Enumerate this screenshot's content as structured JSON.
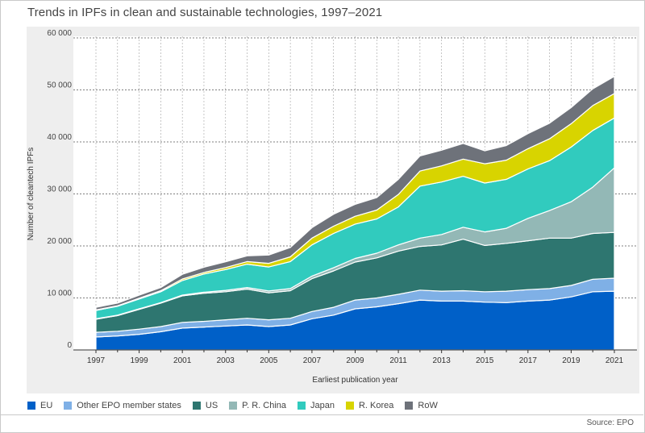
{
  "title": "Trends in IPFs in clean and sustainable technologies, 1997–2021",
  "source": "Source: EPO",
  "chart_data": {
    "type": "area",
    "stacked": true,
    "title": "Trends in IPFs in clean and sustainable technologies, 1997–2021",
    "xlabel": "Earliest publication year",
    "ylabel": "Number of cleantech IPFs",
    "ylim": [
      0,
      60000
    ],
    "yticks": [
      0,
      10000,
      20000,
      30000,
      40000,
      50000,
      60000
    ],
    "ytick_labels": [
      "0",
      "10 000",
      "20 000",
      "30 000",
      "40 000",
      "50 000",
      "60 000"
    ],
    "xtick_labels": [
      "1997",
      "1999",
      "2001",
      "2003",
      "2005",
      "2007",
      "2009",
      "2011",
      "2013",
      "2015",
      "2017",
      "2019",
      "2021"
    ],
    "x": [
      1997,
      1998,
      1999,
      2000,
      2001,
      2002,
      2003,
      2004,
      2005,
      2006,
      2007,
      2008,
      2009,
      2010,
      2011,
      2012,
      2013,
      2014,
      2015,
      2016,
      2017,
      2018,
      2019,
      2020,
      2021
    ],
    "grid": "horizontal",
    "legend_position": "bottom",
    "series": [
      {
        "name": "EU",
        "color": "#0060c8",
        "values": [
          2500,
          2700,
          3000,
          3500,
          4200,
          4400,
          4600,
          4800,
          4500,
          4800,
          6000,
          6700,
          7900,
          8300,
          8900,
          9600,
          9400,
          9400,
          9200,
          9100,
          9400,
          9600,
          10200,
          11200,
          11300
        ]
      },
      {
        "name": "Other EPO member states",
        "color": "#7fb0e6",
        "values": [
          900,
          900,
          1000,
          1000,
          1100,
          1100,
          1200,
          1300,
          1300,
          1300,
          1400,
          1500,
          1700,
          1700,
          1800,
          1900,
          1900,
          2000,
          2000,
          2200,
          2200,
          2200,
          2200,
          2400,
          2500
        ]
      },
      {
        "name": "US",
        "color": "#2e7670",
        "values": [
          2500,
          3000,
          3800,
          4500,
          5100,
          5400,
          5400,
          5600,
          5200,
          5300,
          6300,
          7000,
          7300,
          7700,
          8300,
          8400,
          8900,
          9900,
          8900,
          9200,
          9400,
          9700,
          9100,
          8800,
          8800
        ]
      },
      {
        "name": "P. R. China",
        "color": "#93b8b6",
        "values": [
          100,
          100,
          100,
          100,
          150,
          200,
          250,
          300,
          350,
          400,
          500,
          600,
          700,
          900,
          1200,
          1600,
          2000,
          2300,
          2600,
          2900,
          4300,
          5300,
          7000,
          8900,
          12400
        ]
      },
      {
        "name": "Japan",
        "color": "#31cbbe",
        "values": [
          1600,
          1700,
          1900,
          2100,
          2800,
          3500,
          4000,
          4500,
          4600,
          5200,
          6000,
          6600,
          6600,
          6600,
          7300,
          10000,
          10100,
          9800,
          9400,
          9400,
          9500,
          9600,
          10500,
          10900,
          9600
        ]
      },
      {
        "name": "R. Korea",
        "color": "#d8d400",
        "values": [
          100,
          100,
          150,
          200,
          300,
          300,
          400,
          500,
          700,
          900,
          1300,
          1400,
          1500,
          1700,
          2400,
          2900,
          3100,
          3300,
          3700,
          3700,
          3900,
          4200,
          4500,
          4800,
          4700
        ]
      },
      {
        "name": "RoW",
        "color": "#6e727a",
        "values": [
          500,
          500,
          600,
          600,
          900,
          1000,
          1100,
          1100,
          1600,
          1800,
          2000,
          2300,
          2300,
          2400,
          2900,
          2900,
          3000,
          3000,
          2500,
          2800,
          2900,
          3000,
          3100,
          3200,
          3300
        ]
      }
    ]
  }
}
